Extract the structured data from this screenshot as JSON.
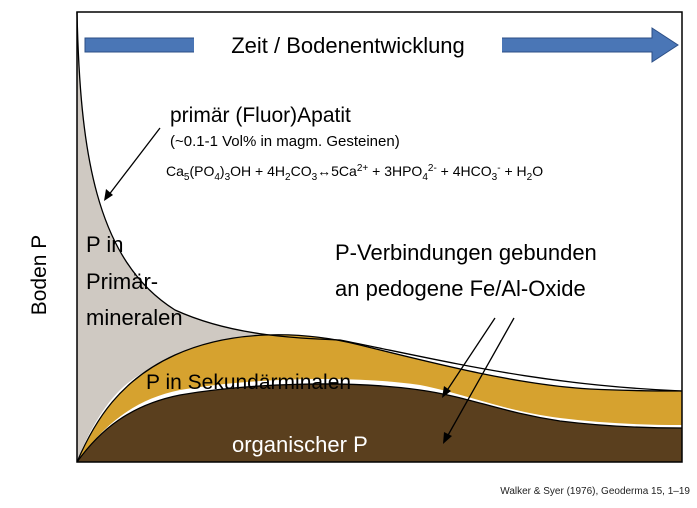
{
  "figure": {
    "y_axis_label": "Boden P",
    "arrow_label": "Zeit / Bodenentwicklung",
    "apatite": {
      "title": "primär (Fluor)Apatit",
      "note": "(~0.1-1 Vol% in magm. Gesteinen)",
      "equation": "Ca5(PO4)3OH + 4H2CO3↔5Ca2+ + 3HPO42- + 4HCO3- + H2O"
    },
    "regions": {
      "primary_line1": "P in",
      "primary_line2": "Primär-",
      "primary_line3": "mineralen",
      "secondary": "P in Sekundärminalen",
      "organic": "organischer P",
      "fe_al_line1": "P-Verbindungen gebunden",
      "fe_al_line2": "an pedogene Fe/Al-Oxide"
    },
    "colors": {
      "primary": "#cfc9c2",
      "secondary": "#d6a22f",
      "organic": "#5a3f1e",
      "arrow_fill": "#4a76b6",
      "frame": "#000000"
    },
    "citation": "Walker & Syer (1976), Geoderma 15, 1–19"
  }
}
